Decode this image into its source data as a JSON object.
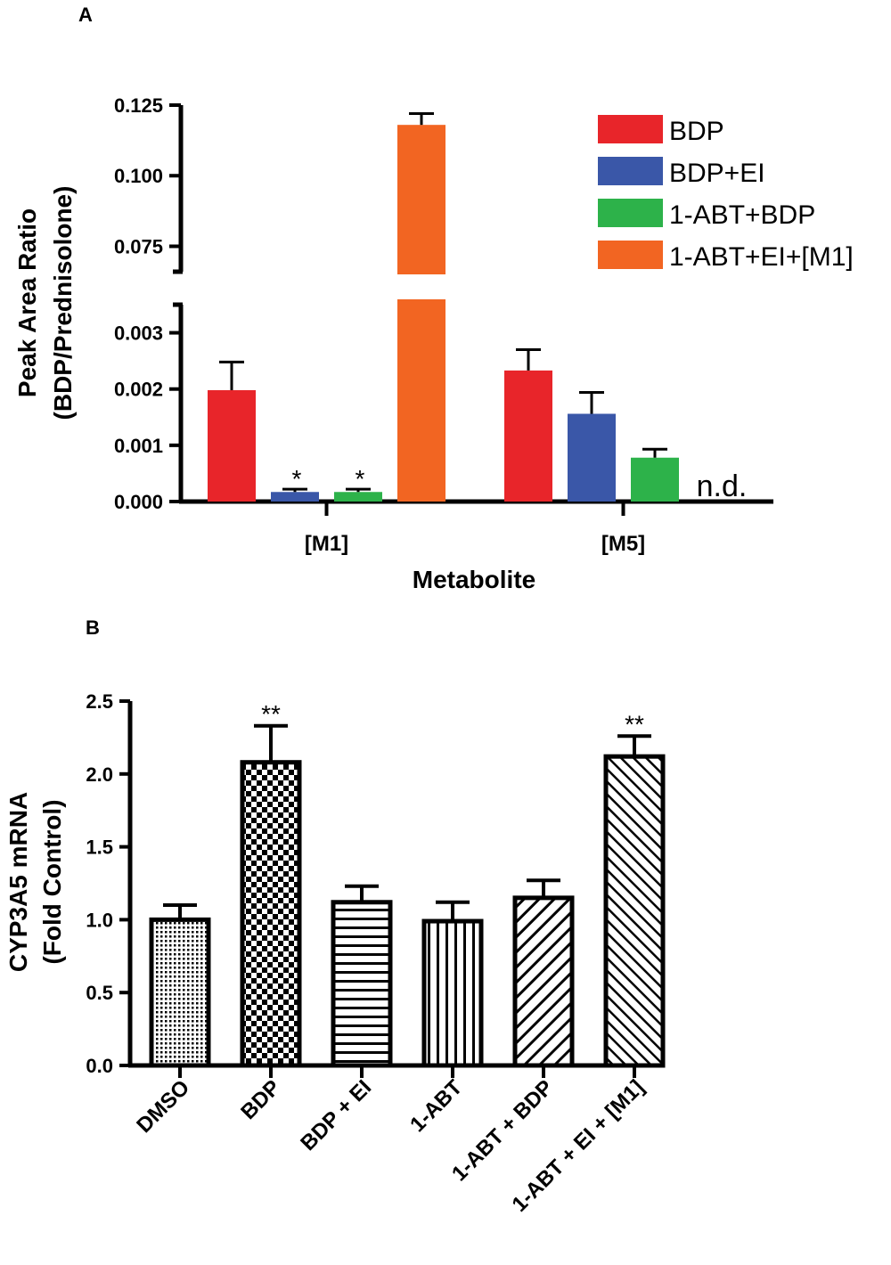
{
  "chart_data": [
    {
      "panel": "A",
      "type": "bar",
      "title": "",
      "xlabel": "Metabolite",
      "ylabel": [
        "Peak Area Ratio",
        "(BDP/Prednisolone)"
      ],
      "categories": [
        "[M1]",
        "[M5]"
      ],
      "axis_break": true,
      "ylim_lower": [
        0,
        0.0035
      ],
      "ylim_upper": [
        0.066,
        0.125
      ],
      "yticks_lower": [
        "0.000",
        "0.001",
        "0.002",
        "0.003"
      ],
      "yticks_upper": [
        "0.075",
        "0.100",
        "0.125"
      ],
      "legend_position": "top-right",
      "series": [
        {
          "name": "BDP",
          "color": "#e8252a",
          "values": [
            0.00198,
            0.00233
          ],
          "errors": [
            0.0005,
            0.00037
          ]
        },
        {
          "name": "BDP+EI",
          "color": "#3a57a8",
          "values": [
            0.00017,
            0.00156
          ],
          "errors": [
            5e-05,
            0.00038
          ]
        },
        {
          "name": "1-ABT+BDP",
          "color": "#2db24a",
          "values": [
            0.00017,
            0.00078
          ],
          "errors": [
            5e-05,
            0.00015
          ]
        },
        {
          "name": "1-ABT+EI+[M1]",
          "color": "#f26522",
          "values": [
            0.118,
            null
          ],
          "errors": [
            0.004,
            null
          ]
        }
      ],
      "annotations": [
        {
          "text": "*",
          "category": "[M1]",
          "series": "BDP+EI"
        },
        {
          "text": "*",
          "category": "[M1]",
          "series": "1-ABT+BDP"
        },
        {
          "text": "n.d.",
          "category": "[M5]",
          "series": "1-ABT+EI+[M1]"
        }
      ]
    },
    {
      "panel": "B",
      "type": "bar",
      "title": "",
      "xlabel": "",
      "ylabel": [
        "CYP3A5 mRNA",
        "(Fold Control)"
      ],
      "ylim": [
        0,
        2.5
      ],
      "yticks": [
        "0.0",
        "0.5",
        "1.0",
        "1.5",
        "2.0",
        "2.5"
      ],
      "categories": [
        "DMSO",
        "BDP",
        "BDP + EI",
        "1-ABT",
        "1-ABT + BDP",
        "1-ABT + EI + [M1]"
      ],
      "values": [
        1.0,
        2.08,
        1.12,
        0.99,
        1.15,
        2.12
      ],
      "errors": [
        0.1,
        0.25,
        0.11,
        0.13,
        0.12,
        0.14
      ],
      "patterns": [
        "fine-dots",
        "checker",
        "horizontal",
        "vertical",
        "diagonal-up",
        "diagonal-down"
      ],
      "annotations": [
        {
          "text": "**",
          "category": "BDP"
        },
        {
          "text": "**",
          "category": "1-ABT + EI + [M1]"
        }
      ]
    }
  ]
}
